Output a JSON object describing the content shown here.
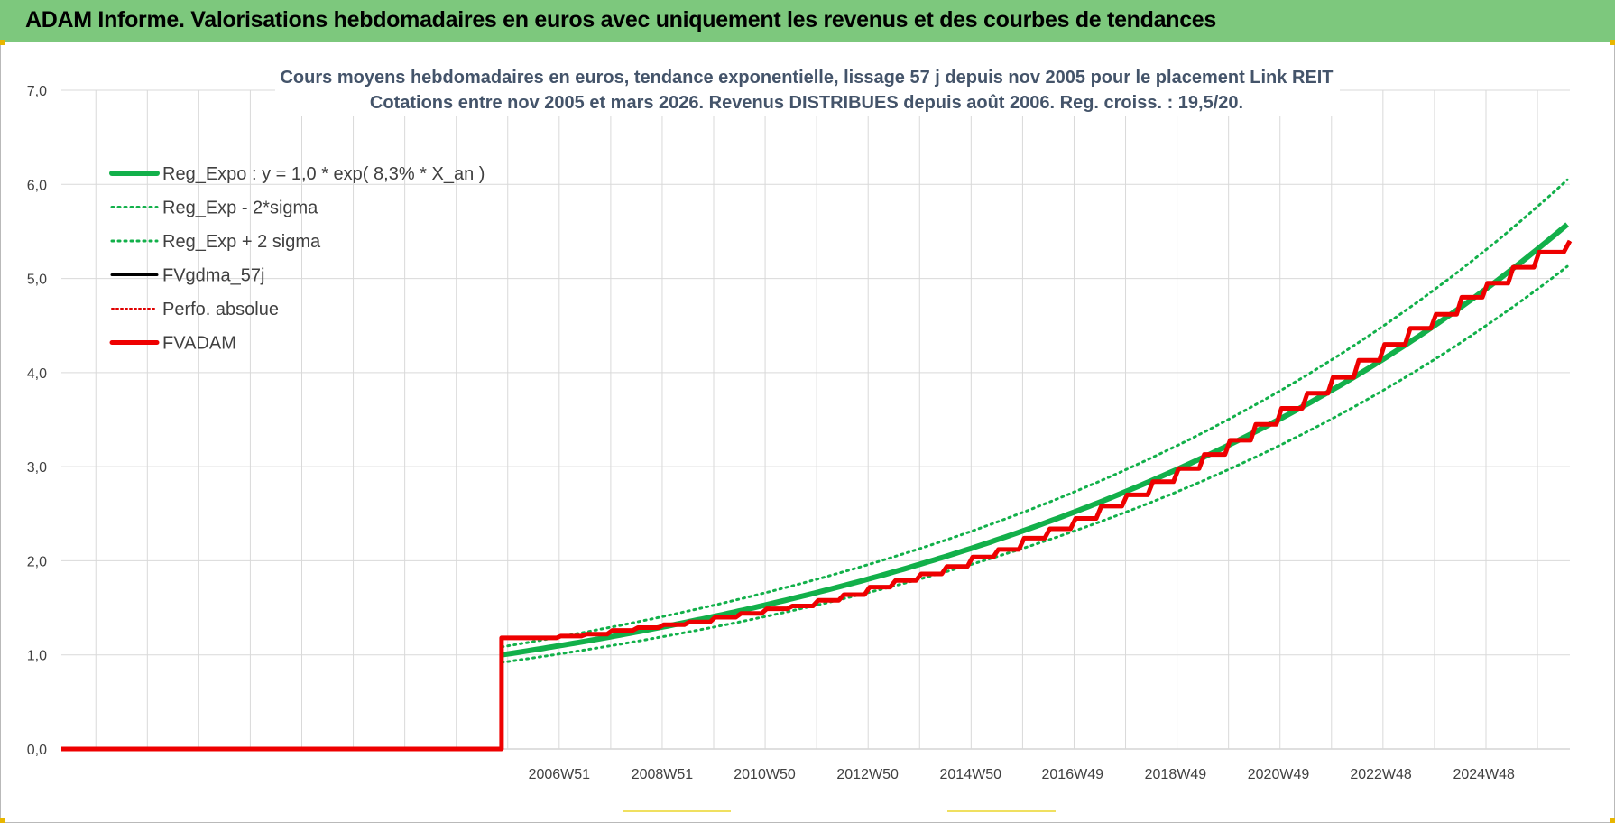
{
  "banner": {
    "title": "ADAM Informe. Valorisations hebdomadaires en euros avec uniquement les revenus et des courbes de tendances"
  },
  "colors": {
    "banner_bg": "#7dc87d",
    "trend_green": "#12b04a",
    "fv_black": "#000000",
    "perfo_red": "#e00000",
    "fvadam_red": "#ee0000",
    "grid": "#d9d9d9"
  },
  "chart_data": {
    "type": "line",
    "title_line1": "Cours moyens hebdomadaires en euros, tendance exponentielle, lissage 57 j depuis nov 2005 pour le placement Link REIT",
    "title_line2": "Cotations entre nov 2005 et mars 2026. Revenus DISTRIBUES depuis août 2006. Reg. croiss. : 19,5/20.",
    "ylim": [
      0,
      7
    ],
    "y_ticks": [
      "0,0",
      "1,0",
      "2,0",
      "3,0",
      "4,0",
      "5,0",
      "6,0",
      "7,0"
    ],
    "xlim": [
      1997.3,
      2026.6
    ],
    "x_ticks": [
      {
        "label": "2006W51",
        "x": 2006.97
      },
      {
        "label": "2008W51",
        "x": 2008.97
      },
      {
        "label": "2010W50",
        "x": 2010.96
      },
      {
        "label": "2012W50",
        "x": 2012.96
      },
      {
        "label": "2014W50",
        "x": 2014.96
      },
      {
        "label": "2016W49",
        "x": 2016.94
      },
      {
        "label": "2018W49",
        "x": 2018.94
      },
      {
        "label": "2020W49",
        "x": 2020.94
      },
      {
        "label": "2022W48",
        "x": 2022.93
      },
      {
        "label": "2024W48",
        "x": 2024.93
      }
    ],
    "grid": true,
    "legend_position": "top-left",
    "start": 2005.85,
    "end": 2026.6,
    "series": [
      {
        "name": "Reg_Expo : y = 1,0 * exp( 8,3% *  X_an )",
        "style": "solid-thick",
        "color": "#12b04a",
        "a": 1.0,
        "rate": 0.083
      },
      {
        "name": "Reg_Exp - 2*sigma",
        "style": "dotted",
        "color": "#12b04a",
        "factor": 0.92
      },
      {
        "name": "Reg_Exp + 2 sigma",
        "style": "dotted",
        "color": "#12b04a",
        "factor": 1.085
      },
      {
        "name": "FVgdma_57j",
        "style": "solid",
        "color": "#000000"
      },
      {
        "name": "Perfo. absolue",
        "style": "dotted",
        "color": "#e00000"
      },
      {
        "name": "FVADAM",
        "style": "solid-thick",
        "color": "#ee0000"
      }
    ],
    "fvadam_points": [
      [
        1997.3,
        0.0
      ],
      [
        2005.85,
        0.0
      ],
      [
        2005.85,
        1.18
      ],
      [
        2006.6,
        1.18
      ],
      [
        2007.0,
        1.2
      ],
      [
        2007.5,
        1.22
      ],
      [
        2008.0,
        1.26
      ],
      [
        2008.5,
        1.29
      ],
      [
        2009.0,
        1.32
      ],
      [
        2009.5,
        1.35
      ],
      [
        2010.0,
        1.4
      ],
      [
        2010.5,
        1.44
      ],
      [
        2011.0,
        1.49
      ],
      [
        2011.5,
        1.52
      ],
      [
        2012.0,
        1.58
      ],
      [
        2012.5,
        1.64
      ],
      [
        2013.0,
        1.72
      ],
      [
        2013.5,
        1.79
      ],
      [
        2014.0,
        1.86
      ],
      [
        2014.5,
        1.94
      ],
      [
        2015.0,
        2.04
      ],
      [
        2015.5,
        2.12
      ],
      [
        2016.0,
        2.24
      ],
      [
        2016.5,
        2.34
      ],
      [
        2017.0,
        2.45
      ],
      [
        2017.5,
        2.58
      ],
      [
        2018.0,
        2.7
      ],
      [
        2018.5,
        2.84
      ],
      [
        2019.0,
        2.98
      ],
      [
        2019.5,
        3.13
      ],
      [
        2020.0,
        3.28
      ],
      [
        2020.5,
        3.45
      ],
      [
        2021.0,
        3.62
      ],
      [
        2021.5,
        3.78
      ],
      [
        2022.0,
        3.95
      ],
      [
        2022.5,
        4.13
      ],
      [
        2023.0,
        4.3
      ],
      [
        2023.5,
        4.47
      ],
      [
        2024.0,
        4.62
      ],
      [
        2024.5,
        4.8
      ],
      [
        2025.0,
        4.95
      ],
      [
        2025.5,
        5.12
      ],
      [
        2026.0,
        5.28
      ],
      [
        2026.6,
        5.4
      ]
    ]
  }
}
